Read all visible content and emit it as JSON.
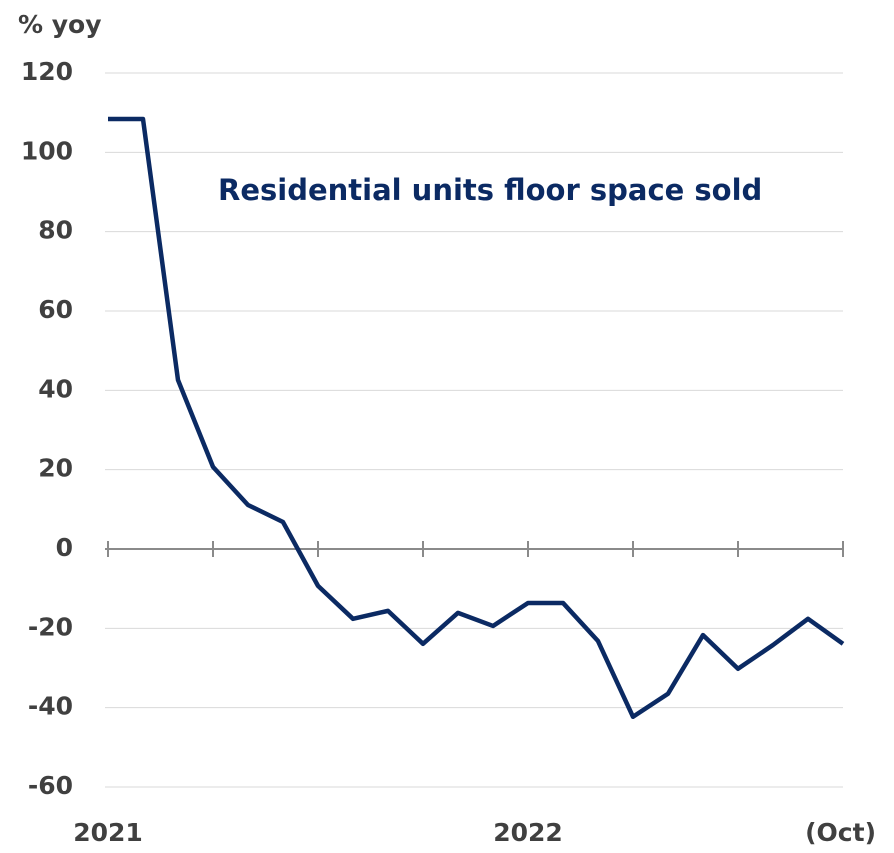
{
  "chart_data": {
    "type": "line",
    "y_label": "% yoy",
    "annotation": "Residential units floor space sold",
    "categories": [
      "2021",
      null,
      null,
      null,
      null,
      null,
      null,
      null,
      null,
      null,
      null,
      null,
      "2022",
      null,
      null,
      null,
      null,
      null,
      null,
      null,
      null,
      "(Oct)"
    ],
    "series": [
      {
        "name": "Residential units floor space sold",
        "color": "#0b2a63",
        "values": [
          108.4,
          108.4,
          42.6,
          20.7,
          11.1,
          6.8,
          -9.3,
          -17.6,
          -15.6,
          -23.9,
          -16.1,
          -19.4,
          -13.6,
          -13.6,
          -23.2,
          -42.3,
          -36.5,
          -21.7,
          -30.2,
          -24.2,
          -17.6,
          -23.9
        ]
      }
    ],
    "ylim": [
      -60,
      120
    ],
    "yticks": [
      -60,
      -40,
      -20,
      0,
      20,
      40,
      60,
      80,
      100,
      120
    ],
    "grid": true
  }
}
